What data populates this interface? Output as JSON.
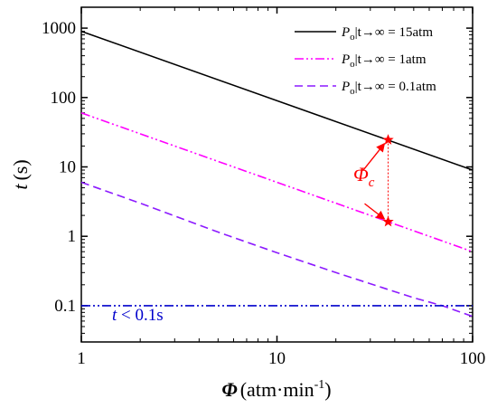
{
  "chart_data": {
    "type": "line",
    "xscale": "log",
    "yscale": "log",
    "xlim": [
      1,
      100
    ],
    "ylim": [
      0.03,
      2000
    ],
    "xlabel": {
      "symbol": "Φ",
      "unit": "(atm·min",
      "sup": "-1",
      "close": ")"
    },
    "ylabel": {
      "symbol": "t",
      "unit": "(s)"
    },
    "x_ticks": [
      1,
      10,
      100
    ],
    "x_tick_labels": [
      "1",
      "10",
      "100"
    ],
    "y_ticks": [
      0.1,
      1,
      10,
      100,
      1000
    ],
    "y_tick_labels": [
      "0.1",
      "1",
      "10",
      "100",
      "1000"
    ],
    "grid": false,
    "legend_position": "top-right",
    "series": [
      {
        "legend": {
          "lead": "P",
          "sub": "o",
          "tail": "|t→∞ = 15atm"
        },
        "color": "#000000",
        "style": "solid",
        "x": [
          1,
          100
        ],
        "y": [
          900,
          9
        ]
      },
      {
        "legend": {
          "lead": "P",
          "sub": "o",
          "tail": "|t→∞ = 1atm"
        },
        "color": "#ff00ff",
        "style": "dash-dot-dot",
        "x": [
          1,
          100
        ],
        "y": [
          60,
          0.6
        ]
      },
      {
        "legend": {
          "lead": "P",
          "sub": "o",
          "tail": "|t→∞ = 0.1atm"
        },
        "color": "#8c1aff",
        "style": "dashed",
        "x": [
          1,
          2,
          5,
          10,
          20,
          35,
          50,
          70,
          100
        ],
        "y": [
          6,
          3,
          1.15,
          0.58,
          0.3,
          0.18,
          0.13,
          0.1,
          0.07
        ]
      },
      {
        "color": "#0000cc",
        "style": "dash-dot-dot",
        "x": [
          1,
          100
        ],
        "y": [
          0.1,
          0.1
        ]
      }
    ],
    "annotations": {
      "phi_c": {
        "label_symbol": "Φ",
        "label_sub": "c",
        "color": "#ff0000",
        "x": 37,
        "y_top": 24.5,
        "y_bottom": 1.62
      },
      "threshold": {
        "label_symbol": "t",
        "label_rest": " < 0.1s",
        "color": "#0000cc"
      }
    }
  }
}
